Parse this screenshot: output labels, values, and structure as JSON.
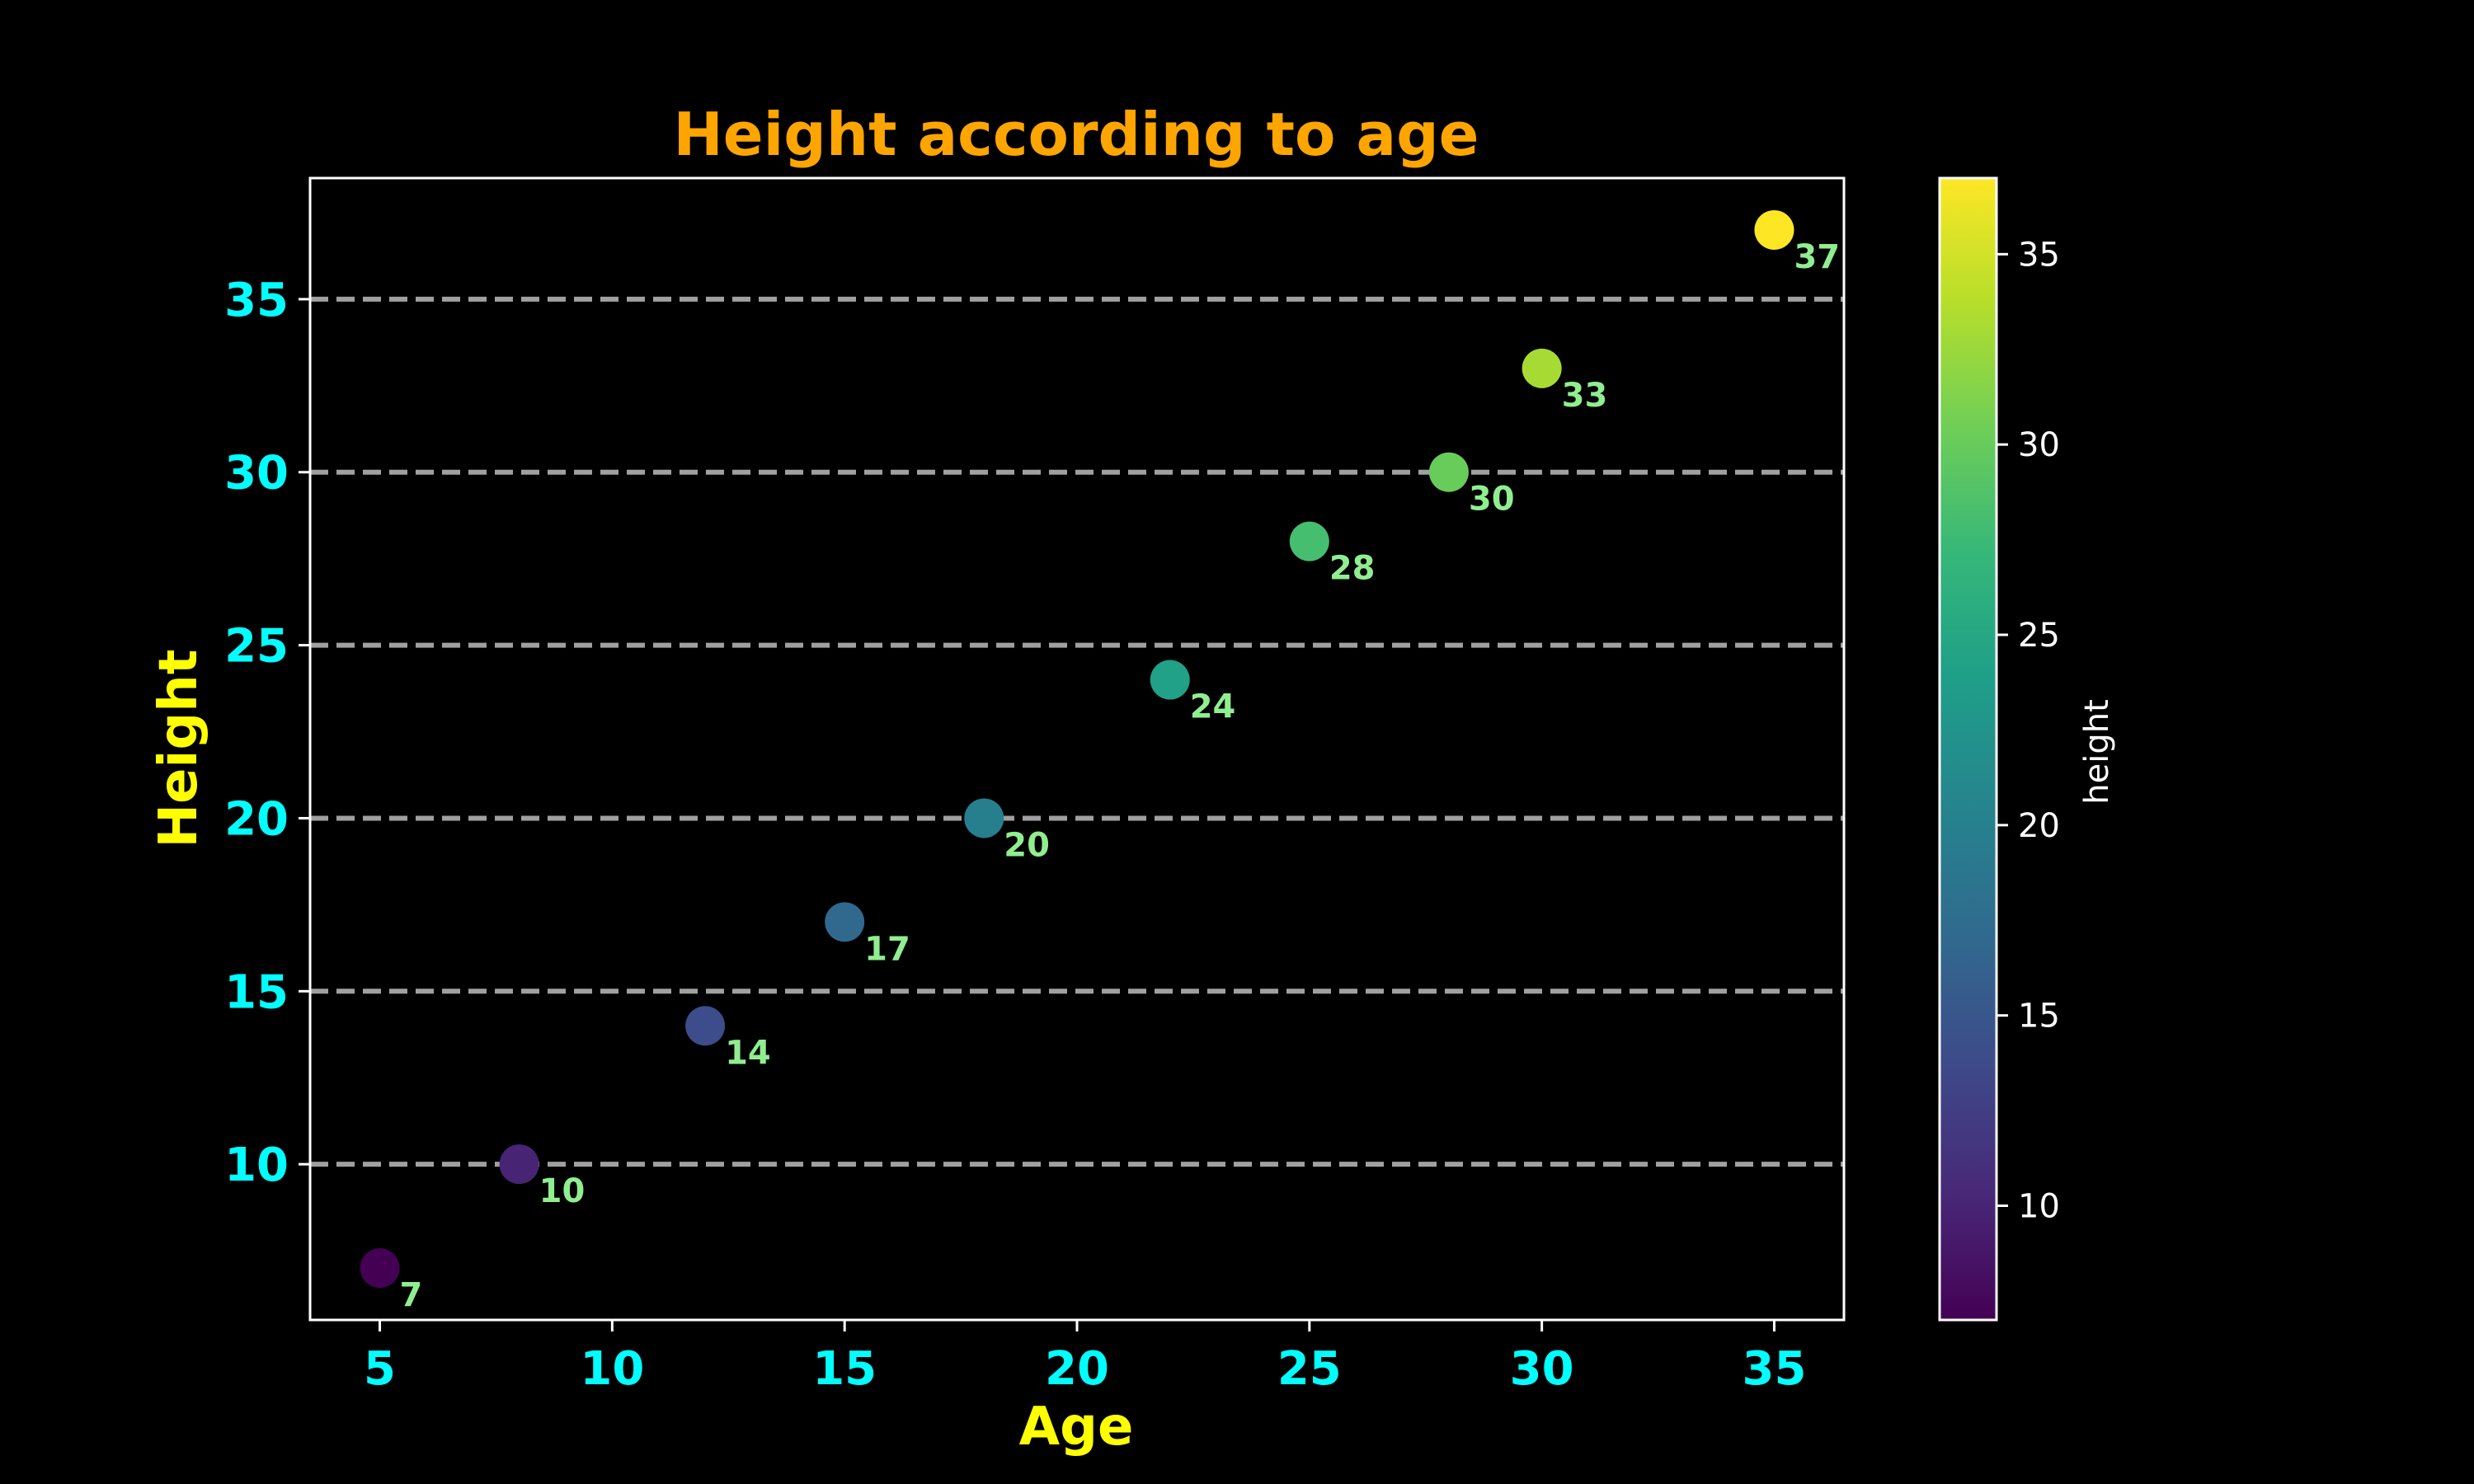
{
  "chart_data": {
    "type": "scatter",
    "title": "Height according to age",
    "xlabel": "Age",
    "ylabel": "Height",
    "x": [
      5,
      8,
      12,
      15,
      18,
      22,
      25,
      28,
      30,
      35
    ],
    "y": [
      7,
      10,
      14,
      17,
      20,
      24,
      28,
      30,
      33,
      37
    ],
    "point_labels": [
      "7",
      "10",
      "14",
      "17",
      "20",
      "24",
      "28",
      "30",
      "33",
      "37"
    ],
    "xlim": [
      3.5,
      36.5
    ],
    "ylim": [
      5.5,
      38.5
    ],
    "xticks": [
      5,
      10,
      15,
      20,
      25,
      30,
      35
    ],
    "xtick_labels": [
      "5",
      "10",
      "15",
      "20",
      "25",
      "30",
      "35"
    ],
    "yticks": [
      10,
      15,
      20,
      25,
      30,
      35
    ],
    "ytick_labels": [
      "10",
      "15",
      "20",
      "25",
      "30",
      "35"
    ],
    "grid": "horizontal dashed",
    "colormap": "viridis",
    "colorbar": {
      "label": "height",
      "range": [
        7,
        37
      ],
      "ticks": [
        10,
        15,
        20,
        25,
        30,
        35
      ],
      "tick_labels": [
        "10",
        "15",
        "20",
        "25",
        "30",
        "35"
      ]
    },
    "colors": {
      "background": "#000000",
      "title": "#ffa500",
      "axis_label": "#ffff00",
      "tick": "#00ffff",
      "point_label": "#90ee90",
      "grid": "#a0a0a0",
      "frame": "#ffffff"
    }
  }
}
